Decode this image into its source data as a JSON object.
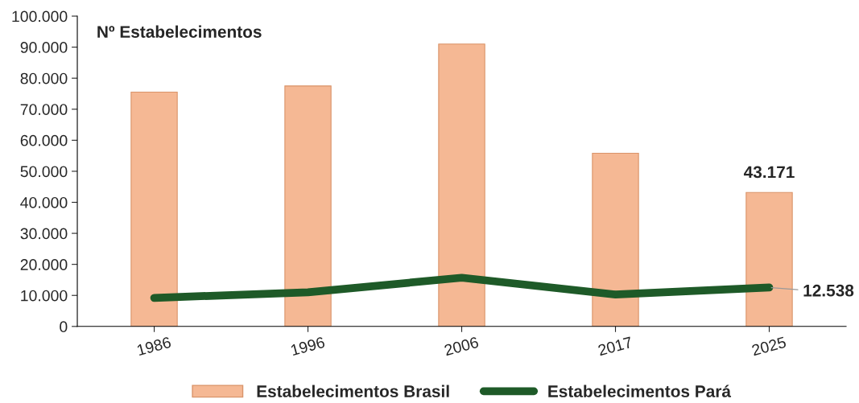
{
  "chart_data": {
    "type": "bar",
    "title": "Nº Estabelecimentos",
    "categories": [
      "1986",
      "1996",
      "2006",
      "2017",
      "2025"
    ],
    "series": [
      {
        "name": "Estabelecimentos Brasil",
        "color": "#f5b894",
        "values": [
          75500,
          77500,
          91000,
          55800,
          43171
        ],
        "value_labels": [
          null,
          null,
          null,
          null,
          "43.171"
        ]
      },
      {
        "name": "Estabelecimentos Pará",
        "type": "line",
        "color": "#1e5a28",
        "values": [
          9200,
          11000,
          15700,
          10300,
          12538
        ],
        "value_labels": [
          null,
          null,
          null,
          null,
          "12.538"
        ]
      }
    ],
    "ylim": [
      0,
      100000
    ],
    "yticks": [
      0,
      {
        "value": 10000,
        "label": "10.000"
      },
      {
        "value": 20000,
        "label": "20.000"
      },
      {
        "value": 30000,
        "label": "30.000"
      },
      {
        "value": 40000,
        "label": "40.000"
      },
      {
        "value": 50000,
        "label": "50.000"
      },
      {
        "value": 60000,
        "label": "60.000"
      },
      {
        "value": 70000,
        "label": "70.000"
      },
      {
        "value": 80000,
        "label": "80.000"
      },
      {
        "value": 90000,
        "label": "90.000"
      },
      {
        "value": 100000,
        "label": "100.000"
      }
    ],
    "grid": false,
    "legend": "bottom",
    "line_style": "solid",
    "marker": "none"
  }
}
